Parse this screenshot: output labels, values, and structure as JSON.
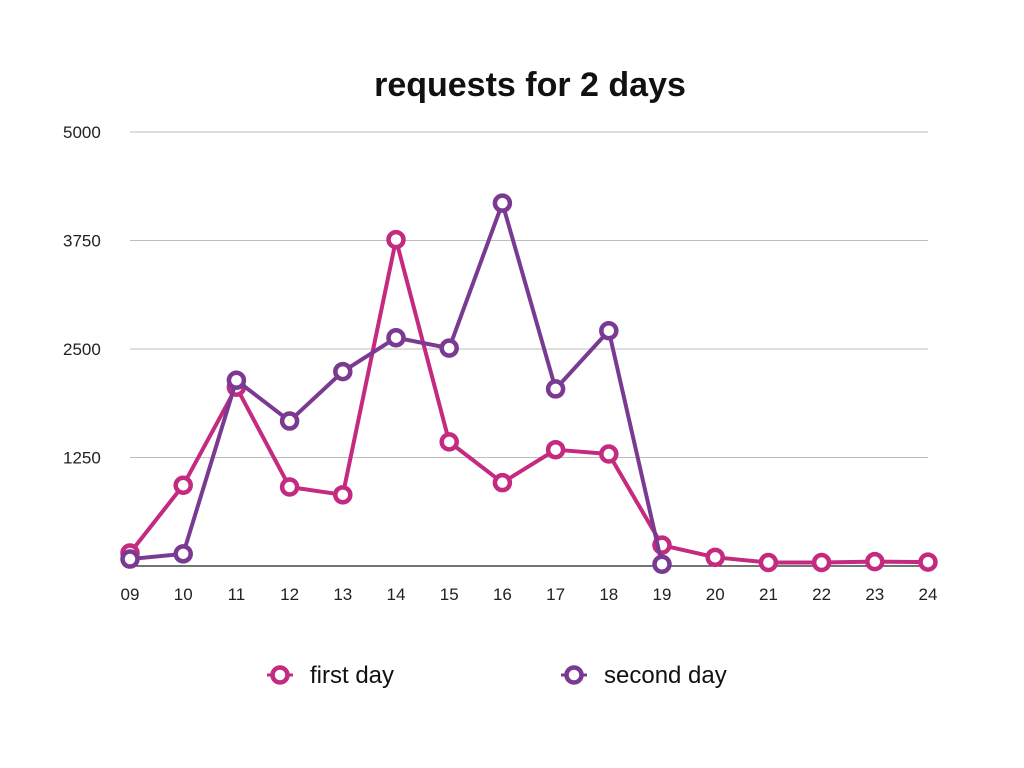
{
  "chart_data": {
    "type": "line",
    "title": "requests for 2 days",
    "xlabel": "",
    "ylabel": "",
    "categories": [
      "09",
      "10",
      "11",
      "12",
      "13",
      "14",
      "15",
      "16",
      "17",
      "18",
      "19",
      "20",
      "21",
      "22",
      "23",
      "24"
    ],
    "yticks": [
      "1250",
      "2500",
      "3750",
      "5000"
    ],
    "ylim": [
      0,
      5000
    ],
    "grid": true,
    "legend_position": "bottom",
    "series": [
      {
        "name": "first day",
        "color": "#c42a7f",
        "values": [
          150,
          930,
          2060,
          910,
          820,
          3760,
          1430,
          960,
          1340,
          1290,
          240,
          100,
          40,
          40,
          50,
          45
        ]
      },
      {
        "name": "second day",
        "color": "#7b3a91",
        "values": [
          80,
          140,
          2140,
          1670,
          2240,
          2630,
          2510,
          4180,
          2040,
          2710,
          20,
          null,
          null,
          null,
          null,
          null
        ]
      }
    ]
  }
}
